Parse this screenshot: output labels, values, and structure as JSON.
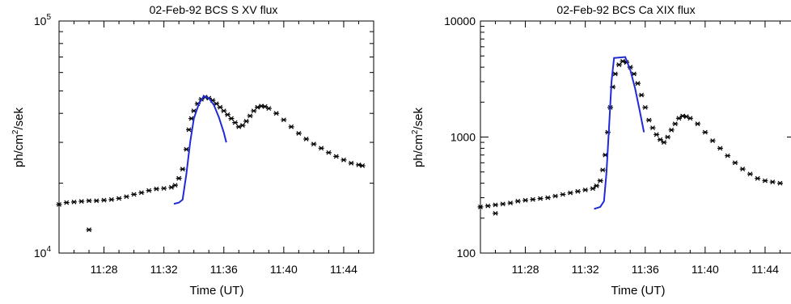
{
  "chart_data": [
    {
      "type": "scatter",
      "title": "02-Feb-92   BCS S XV flux",
      "xlabel": "Time (UT)",
      "ylabel": "ph/cm2/sek",
      "ylabel_parts": {
        "base": "ph/cm",
        "sup": "2",
        "tail": "/sek"
      },
      "yscale": "log",
      "xlim": [
        "11:25",
        "11:46"
      ],
      "ylim": [
        10000,
        100000
      ],
      "x_ticks": [
        "11:28",
        "11:32",
        "11:36",
        "11:40",
        "11:44"
      ],
      "y_ticks": [
        {
          "value": 10000,
          "base": "10",
          "sup": "4"
        },
        {
          "value": 100000,
          "base": "10",
          "sup": "5"
        }
      ],
      "grid": false,
      "series": [
        {
          "marker": "asterisk",
          "color": "#000000",
          "points": [
            [
              "11:25:00",
              16200
            ],
            [
              "11:25:30",
              16500
            ],
            [
              "11:26:00",
              16600
            ],
            [
              "11:26:30",
              16700
            ],
            [
              "11:27:00",
              16800
            ],
            [
              "11:27:30",
              16800
            ],
            [
              "11:28:00",
              16900
            ],
            [
              "11:28:30",
              17000
            ],
            [
              "11:29:00",
              17200
            ],
            [
              "11:29:30",
              17500
            ],
            [
              "11:30:00",
              17900
            ],
            [
              "11:30:30",
              18200
            ],
            [
              "11:31:00",
              18600
            ],
            [
              "11:31:30",
              18900
            ],
            [
              "11:32:00",
              19000
            ],
            [
              "11:32:30",
              19200
            ],
            [
              "11:32:45",
              19600
            ],
            [
              "11:33:00",
              21000
            ],
            [
              "11:33:15",
              23000
            ],
            [
              "11:33:30",
              28000
            ],
            [
              "11:33:40",
              34000
            ],
            [
              "11:33:50",
              38000
            ],
            [
              "11:34:00",
              41000
            ],
            [
              "11:34:15",
              44000
            ],
            [
              "11:34:30",
              46000
            ],
            [
              "11:34:45",
              47000
            ],
            [
              "11:35:00",
              46500
            ],
            [
              "11:35:15",
              45500
            ],
            [
              "11:35:30",
              44000
            ],
            [
              "11:35:45",
              42500
            ],
            [
              "11:36:00",
              41000
            ],
            [
              "11:36:15",
              39500
            ],
            [
              "11:36:30",
              38000
            ],
            [
              "11:36:45",
              36500
            ],
            [
              "11:37:00",
              35000
            ],
            [
              "11:37:15",
              35500
            ],
            [
              "11:37:30",
              37000
            ],
            [
              "11:37:45",
              39000
            ],
            [
              "11:38:00",
              41000
            ],
            [
              "11:38:15",
              42500
            ],
            [
              "11:38:30",
              43000
            ],
            [
              "11:38:45",
              42800
            ],
            [
              "11:39:00",
              42000
            ],
            [
              "11:39:30",
              40000
            ],
            [
              "11:40:00",
              37500
            ],
            [
              "11:40:30",
              35000
            ],
            [
              "11:41:00",
              32800
            ],
            [
              "11:41:30",
              31000
            ],
            [
              "11:42:00",
              29500
            ],
            [
              "11:42:30",
              28300
            ],
            [
              "11:43:00",
              27100
            ],
            [
              "11:43:30",
              26100
            ],
            [
              "11:44:00",
              25200
            ],
            [
              "11:44:30",
              24400
            ],
            [
              "11:45:00",
              24000
            ],
            [
              "11:45:15",
              23800
            ],
            [
              "11:27:00",
              12600
            ]
          ]
        },
        {
          "marker": "line",
          "color": "#1f2bd6",
          "points": [
            [
              "11:32:40",
              16300
            ],
            [
              "11:33:00",
              16500
            ],
            [
              "11:33:15",
              17000
            ],
            [
              "11:33:30",
              22000
            ],
            [
              "11:33:45",
              30000
            ],
            [
              "11:34:00",
              38000
            ],
            [
              "11:34:20",
              44000
            ],
            [
              "11:34:40",
              47500
            ],
            [
              "11:35:00",
              46500
            ],
            [
              "11:35:20",
              43500
            ],
            [
              "11:35:40",
              38500
            ],
            [
              "11:36:00",
              33000
            ],
            [
              "11:36:10",
              30000
            ]
          ]
        }
      ]
    },
    {
      "type": "scatter",
      "title": "02-Feb-92   BCS Ca XIX flux",
      "xlabel": "Time (UT)",
      "ylabel": "ph/cm2/sek",
      "ylabel_parts": {
        "base": "ph/cm",
        "sup": "2",
        "tail": "/sek"
      },
      "yscale": "log",
      "xlim": [
        "11:25",
        "11:46"
      ],
      "ylim": [
        100,
        10000
      ],
      "x_ticks": [
        "11:28",
        "11:32",
        "11:36",
        "11:40",
        "11:44"
      ],
      "y_ticks": [
        {
          "value": 100,
          "base": "100",
          "sup": ""
        },
        {
          "value": 1000,
          "base": "1000",
          "sup": ""
        },
        {
          "value": 10000,
          "base": "10000",
          "sup": ""
        }
      ],
      "grid": false,
      "series": [
        {
          "marker": "asterisk",
          "color": "#000000",
          "points": [
            [
              "11:25:00",
              250
            ],
            [
              "11:25:30",
              255
            ],
            [
              "11:26:00",
              260
            ],
            [
              "11:26:30",
              265
            ],
            [
              "11:27:00",
              270
            ],
            [
              "11:27:30",
              280
            ],
            [
              "11:28:00",
              285
            ],
            [
              "11:28:30",
              290
            ],
            [
              "11:29:00",
              295
            ],
            [
              "11:29:30",
              300
            ],
            [
              "11:30:00",
              310
            ],
            [
              "11:30:30",
              320
            ],
            [
              "11:31:00",
              330
            ],
            [
              "11:31:30",
              340
            ],
            [
              "11:32:00",
              350
            ],
            [
              "11:32:30",
              360
            ],
            [
              "11:32:45",
              380
            ],
            [
              "11:33:00",
              420
            ],
            [
              "11:33:10",
              520
            ],
            [
              "11:33:20",
              700
            ],
            [
              "11:33:30",
              1100
            ],
            [
              "11:33:40",
              1800
            ],
            [
              "11:33:50",
              2700
            ],
            [
              "11:34:00",
              3500
            ],
            [
              "11:34:15",
              4200
            ],
            [
              "11:34:30",
              4500
            ],
            [
              "11:34:45",
              4400
            ],
            [
              "11:35:00",
              4000
            ],
            [
              "11:35:15",
              3500
            ],
            [
              "11:35:30",
              2900
            ],
            [
              "11:35:45",
              2300
            ],
            [
              "11:36:00",
              1800
            ],
            [
              "11:36:15",
              1400
            ],
            [
              "11:36:30",
              1200
            ],
            [
              "11:36:45",
              1050
            ],
            [
              "11:37:00",
              950
            ],
            [
              "11:37:15",
              900
            ],
            [
              "11:37:30",
              1000
            ],
            [
              "11:37:45",
              1150
            ],
            [
              "11:38:00",
              1300
            ],
            [
              "11:38:15",
              1450
            ],
            [
              "11:38:30",
              1520
            ],
            [
              "11:38:45",
              1500
            ],
            [
              "11:39:00",
              1450
            ],
            [
              "11:39:30",
              1300
            ],
            [
              "11:40:00",
              1100
            ],
            [
              "11:40:30",
              930
            ],
            [
              "11:41:00",
              800
            ],
            [
              "11:41:30",
              690
            ],
            [
              "11:42:00",
              600
            ],
            [
              "11:42:30",
              530
            ],
            [
              "11:43:00",
              480
            ],
            [
              "11:43:30",
              440
            ],
            [
              "11:44:00",
              420
            ],
            [
              "11:44:30",
              410
            ],
            [
              "11:45:00",
              400
            ],
            [
              "11:26:00",
              220
            ]
          ]
        },
        {
          "marker": "line",
          "color": "#1f2bd6",
          "points": [
            [
              "11:32:35",
              240
            ],
            [
              "11:33:00",
              250
            ],
            [
              "11:33:15",
              280
            ],
            [
              "11:33:25",
              500
            ],
            [
              "11:33:35",
              1200
            ],
            [
              "11:33:45",
              3000
            ],
            [
              "11:33:55",
              4800
            ],
            [
              "11:34:40",
              4900
            ],
            [
              "11:35:00",
              3800
            ],
            [
              "11:35:20",
              2600
            ],
            [
              "11:35:40",
              1600
            ],
            [
              "11:35:55",
              1100
            ]
          ]
        }
      ]
    }
  ]
}
